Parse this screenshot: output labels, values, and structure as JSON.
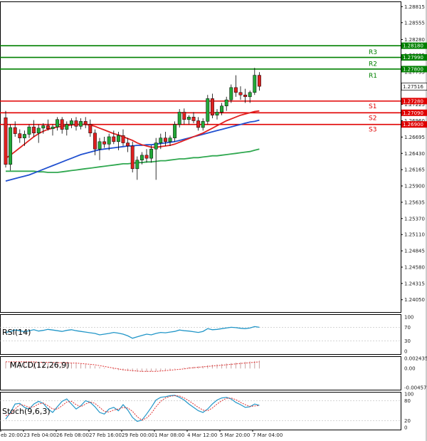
{
  "chart_data": {
    "type": "candlestick",
    "colors": {
      "bull": "#22a838",
      "bear": "#e02020",
      "resistance": "#008000",
      "support": "#e00000",
      "ma_fast": "#e02020",
      "ma_mid": "#2050d0",
      "ma_slow": "#30a850",
      "rsi": "#2196c8",
      "macd": "#e03030",
      "stoch_k": "#2196c8",
      "stoch_d": "#e03030"
    },
    "price_axis": {
      "ylim": [
        1.2385,
        1.289
      ],
      "ticks": [
        "1.28815",
        "1.28555",
        "1.28280",
        "1.28025",
        "1.27753",
        "1.27225",
        "1.26960",
        "1.26695",
        "1.26430",
        "1.26165",
        "1.25900",
        "1.25635",
        "1.25370",
        "1.25110",
        "1.24845",
        "1.24580",
        "1.24315",
        "1.24050"
      ]
    },
    "current_price": "1.27516",
    "levels": [
      {
        "name": "R3",
        "value": 1.2818,
        "label": "1.28180",
        "kind": "resistance"
      },
      {
        "name": "R2",
        "value": 1.2799,
        "label": "1.27990",
        "kind": "resistance"
      },
      {
        "name": "R1",
        "value": 1.278,
        "label": "1.27800",
        "kind": "resistance"
      },
      {
        "name": "S1",
        "value": 1.2728,
        "label": "1.27280",
        "kind": "support"
      },
      {
        "name": "S2",
        "value": 1.2709,
        "label": "1.27090",
        "kind": "support"
      },
      {
        "name": "S3",
        "value": 1.269,
        "label": "1.26900",
        "kind": "support"
      }
    ],
    "x_labels": [
      "eb 20:00",
      "23 Feb 04:00",
      "26 Feb 08:00",
      "27 Feb 16:00",
      "29 Feb 00:00",
      "1 Mar 08:00",
      "4 Mar 12:00",
      "5 Mar 20:00",
      "7 Mar 04:00"
    ],
    "candles": [
      [
        1.2701,
        1.2712,
        1.262,
        1.2625
      ],
      [
        1.2625,
        1.269,
        1.2615,
        1.2685
      ],
      [
        1.2685,
        1.2695,
        1.267,
        1.2675
      ],
      [
        1.2675,
        1.2682,
        1.266,
        1.2668
      ],
      [
        1.2668,
        1.268,
        1.2655,
        1.2674
      ],
      [
        1.2674,
        1.269,
        1.2668,
        1.2686
      ],
      [
        1.2686,
        1.2697,
        1.267,
        1.2676
      ],
      [
        1.2676,
        1.269,
        1.266,
        1.2684
      ],
      [
        1.2684,
        1.2692,
        1.2675,
        1.2688
      ],
      [
        1.2688,
        1.2698,
        1.268,
        1.2683
      ],
      [
        1.2683,
        1.269,
        1.2672,
        1.2686
      ],
      [
        1.2686,
        1.2702,
        1.268,
        1.2698
      ],
      [
        1.2698,
        1.2702,
        1.2675,
        1.2682
      ],
      [
        1.2682,
        1.2695,
        1.2672,
        1.269
      ],
      [
        1.269,
        1.27,
        1.2684,
        1.2696
      ],
      [
        1.2696,
        1.2702,
        1.268,
        1.2687
      ],
      [
        1.2687,
        1.27,
        1.2682,
        1.2695
      ],
      [
        1.2695,
        1.2702,
        1.2684,
        1.269
      ],
      [
        1.269,
        1.2698,
        1.267,
        1.2676
      ],
      [
        1.2676,
        1.2682,
        1.264,
        1.265
      ],
      [
        1.265,
        1.2668,
        1.2632,
        1.2662
      ],
      [
        1.2662,
        1.267,
        1.2652,
        1.2658
      ],
      [
        1.2658,
        1.2675,
        1.2648,
        1.267
      ],
      [
        1.267,
        1.268,
        1.2658,
        1.2662
      ],
      [
        1.2662,
        1.2678,
        1.2648,
        1.2672
      ],
      [
        1.2672,
        1.2682,
        1.2655,
        1.266
      ],
      [
        1.266,
        1.2668,
        1.2645,
        1.2655
      ],
      [
        1.2655,
        1.2662,
        1.2612,
        1.2618
      ],
      [
        1.2618,
        1.2638,
        1.26,
        1.2632
      ],
      [
        1.2632,
        1.2645,
        1.2625,
        1.264
      ],
      [
        1.264,
        1.265,
        1.2628,
        1.2635
      ],
      [
        1.2635,
        1.2656,
        1.2628,
        1.265
      ],
      [
        1.265,
        1.2668,
        1.26,
        1.266
      ],
      [
        1.266,
        1.2675,
        1.265,
        1.2668
      ],
      [
        1.2668,
        1.2678,
        1.2655,
        1.2662
      ],
      [
        1.2662,
        1.2672,
        1.2655,
        1.2668
      ],
      [
        1.2668,
        1.2695,
        1.2662,
        1.269
      ],
      [
        1.269,
        1.2715,
        1.2685,
        1.271
      ],
      [
        1.271,
        1.2716,
        1.269,
        1.2698
      ],
      [
        1.2698,
        1.2705,
        1.269,
        1.2702
      ],
      [
        1.2702,
        1.271,
        1.2692,
        1.2696
      ],
      [
        1.2696,
        1.2702,
        1.268,
        1.2685
      ],
      [
        1.2685,
        1.27,
        1.268,
        1.2695
      ],
      [
        1.2695,
        1.2738,
        1.269,
        1.2732
      ],
      [
        1.2732,
        1.274,
        1.27,
        1.2705
      ],
      [
        1.2705,
        1.2715,
        1.2698,
        1.271
      ],
      [
        1.271,
        1.2725,
        1.2705,
        1.272
      ],
      [
        1.272,
        1.2735,
        1.2712,
        1.273
      ],
      [
        1.273,
        1.2755,
        1.2725,
        1.275
      ],
      [
        1.275,
        1.277,
        1.2735,
        1.2742
      ],
      [
        1.2742,
        1.2752,
        1.273,
        1.2738
      ],
      [
        1.2738,
        1.2748,
        1.2725,
        1.2735
      ],
      [
        1.2735,
        1.2745,
        1.2725,
        1.2742
      ],
      [
        1.2742,
        1.2782,
        1.2738,
        1.277
      ],
      [
        1.277,
        1.2775,
        1.2745,
        1.2752
      ]
    ],
    "ma_fast": [
      1.2635,
      1.264,
      1.2646,
      1.2652,
      1.2658,
      1.2664,
      1.267,
      1.2675,
      1.2679,
      1.2682,
      1.2684,
      1.2686,
      1.2687,
      1.2688,
      1.2689,
      1.269,
      1.269,
      1.269,
      1.2689,
      1.2687,
      1.2684,
      1.2681,
      1.2678,
      1.2675,
      1.2673,
      1.267,
      1.2667,
      1.2664,
      1.266,
      1.2657,
      1.2655,
      1.2653,
      1.2653,
      1.2654,
      1.2655,
      1.2656,
      1.2658,
      1.2661,
      1.2664,
      1.2667,
      1.267,
      1.2673,
      1.2676,
      1.268,
      1.2684,
      1.2688,
      1.2692,
      1.2696,
      1.2699,
      1.2702,
      1.2705,
      1.2707,
      1.2709,
      1.2711,
      1.2712
    ],
    "ma_mid": [
      1.2598,
      1.26,
      1.2602,
      1.2604,
      1.2606,
      1.2608,
      1.2611,
      1.2614,
      1.2617,
      1.262,
      1.2623,
      1.2626,
      1.2629,
      1.2632,
      1.2635,
      1.2638,
      1.2641,
      1.2643,
      1.2645,
      1.2647,
      1.2649,
      1.265,
      1.2651,
      1.2652,
      1.2653,
      1.2654,
      1.2655,
      1.2655,
      1.2656,
      1.2656,
      1.2657,
      1.2657,
      1.2658,
      1.2659,
      1.266,
      1.2661,
      1.2662,
      1.2664,
      1.2666,
      1.2668,
      1.267,
      1.2672,
      1.2674,
      1.2676,
      1.2678,
      1.268,
      1.2682,
      1.2684,
      1.2686,
      1.2688,
      1.269,
      1.2692,
      1.2694,
      1.2695,
      1.2697
    ],
    "ma_slow": [
      1.2614,
      1.2614,
      1.2614,
      1.2614,
      1.2614,
      1.2614,
      1.2614,
      1.2613,
      1.2613,
      1.2612,
      1.2612,
      1.2612,
      1.2613,
      1.2614,
      1.2615,
      1.2616,
      1.2617,
      1.2618,
      1.2619,
      1.262,
      1.2621,
      1.2622,
      1.2623,
      1.2624,
      1.2625,
      1.2626,
      1.2626,
      1.2627,
      1.2628,
      1.2628,
      1.2629,
      1.2629,
      1.263,
      1.2631,
      1.2631,
      1.2632,
      1.2633,
      1.2634,
      1.2634,
      1.2635,
      1.2636,
      1.2636,
      1.2637,
      1.2638,
      1.2639,
      1.2639,
      1.264,
      1.2641,
      1.2642,
      1.2643,
      1.2644,
      1.2645,
      1.2646,
      1.2648,
      1.265
    ],
    "rsi": {
      "title": "RSI(14)",
      "ticks": [
        "100",
        "70",
        "30",
        "0"
      ],
      "ylim": [
        0,
        100
      ],
      "values": [
        55,
        58,
        62,
        60,
        57,
        60,
        63,
        59,
        61,
        64,
        62,
        60,
        58,
        61,
        63,
        60,
        58,
        56,
        54,
        52,
        48,
        50,
        52,
        55,
        53,
        50,
        45,
        38,
        42,
        46,
        50,
        48,
        52,
        55,
        54,
        56,
        58,
        62,
        60,
        59,
        57,
        55,
        58,
        66,
        63,
        64,
        66,
        68,
        70,
        69,
        67,
        66,
        68,
        72,
        70
      ]
    },
    "macd": {
      "title": "MACD(12,26,9)",
      "ticks": [
        "0.002435",
        "0.00",
        "-0.004571"
      ],
      "ylim": [
        -0.004571,
        0.002435
      ],
      "values": [
        0.0016,
        0.0016,
        0.0016,
        0.0016,
        0.0016,
        0.0016,
        0.0016,
        0.0015,
        0.0015,
        0.0015,
        0.0014,
        0.0014,
        0.0014,
        0.0013,
        0.0013,
        0.0012,
        0.0011,
        0.001,
        0.0008,
        0.0006,
        0.0004,
        0.0002,
        0.0,
        -0.0002,
        -0.0004,
        -0.0005,
        -0.0006,
        -0.0007,
        -0.0008,
        -0.0008,
        -0.0008,
        -0.0007,
        -0.0006,
        -0.0005,
        -0.0004,
        -0.0003,
        -0.0001,
        0.0,
        0.0002,
        0.0003,
        0.0004,
        0.0005,
        0.0006,
        0.0008,
        0.0009,
        0.001,
        0.0011,
        0.0012,
        0.0013,
        0.0014,
        0.0015,
        0.0016,
        0.0017,
        0.0018,
        0.0019
      ],
      "signal": [
        0.0016,
        0.0016,
        0.0016,
        0.0016,
        0.0016,
        0.0016,
        0.0016,
        0.0015,
        0.0015,
        0.0015,
        0.0015,
        0.0014,
        0.0014,
        0.0014,
        0.0013,
        0.0013,
        0.0012,
        0.0011,
        0.001,
        0.0009,
        0.0007,
        0.0005,
        0.0003,
        0.0001,
        -0.0001,
        -0.0003,
        -0.0004,
        -0.0005,
        -0.0006,
        -0.0007,
        -0.0007,
        -0.0007,
        -0.0007,
        -0.0006,
        -0.0005,
        -0.0004,
        -0.0003,
        -0.0002,
        -0.0001,
        0.0001,
        0.0002,
        0.0003,
        0.0004,
        0.0005,
        0.0006,
        0.0007,
        0.0008,
        0.0009,
        0.001,
        0.0011,
        0.0012,
        0.0013,
        0.0014,
        0.0015,
        0.0016
      ]
    },
    "stoch": {
      "title": "Stoch(9,6,3)",
      "ticks": [
        "100",
        "80",
        "20",
        "0"
      ],
      "ylim": [
        0,
        100
      ],
      "k": [
        25,
        45,
        70,
        72,
        60,
        55,
        70,
        78,
        72,
        55,
        45,
        62,
        78,
        85,
        70,
        55,
        65,
        80,
        75,
        62,
        45,
        40,
        55,
        60,
        50,
        68,
        52,
        30,
        18,
        22,
        40,
        60,
        82,
        90,
        92,
        95,
        96,
        90,
        82,
        70,
        60,
        50,
        45,
        55,
        70,
        82,
        88,
        90,
        85,
        75,
        68,
        60,
        62,
        70,
        66
      ],
      "d": [
        35,
        40,
        55,
        68,
        66,
        60,
        62,
        70,
        73,
        65,
        55,
        55,
        65,
        76,
        78,
        68,
        62,
        70,
        76,
        72,
        60,
        48,
        46,
        52,
        55,
        60,
        58,
        48,
        32,
        22,
        28,
        42,
        62,
        78,
        88,
        93,
        95,
        94,
        88,
        80,
        70,
        60,
        52,
        50,
        58,
        70,
        80,
        87,
        88,
        83,
        75,
        68,
        63,
        64,
        66
      ]
    }
  }
}
